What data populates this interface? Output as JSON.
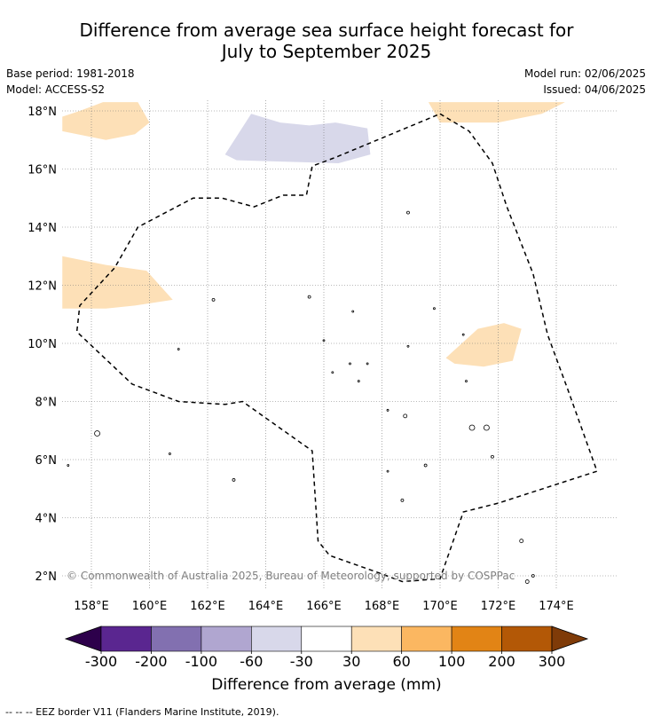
{
  "title": {
    "line1": "Difference from average sea surface height forecast for",
    "line2": "July to September 2025"
  },
  "meta": {
    "base_period": "Base period: 1981-2018",
    "model": "Model: ACCESS-S2",
    "model_run": "Model run: 02/06/2025",
    "issued": "Issued: 04/06/2025"
  },
  "map": {
    "lon_ticks": [
      "158°E",
      "160°E",
      "162°E",
      "164°E",
      "166°E",
      "168°E",
      "170°E",
      "172°E",
      "174°E"
    ],
    "lat_ticks": [
      "2°N",
      "4°N",
      "6°N",
      "8°N",
      "10°N",
      "12°N",
      "14°N",
      "16°N",
      "18°N"
    ],
    "lon_values": [
      158,
      160,
      162,
      164,
      166,
      168,
      170,
      172,
      174
    ],
    "lat_values": [
      2,
      4,
      6,
      8,
      10,
      12,
      14,
      16,
      18
    ],
    "copyright": "© Commonwealth of Australia 2025, Bureau of Meteorology, supported by COSPPac",
    "eez_border": [
      [
        170.0,
        17.9
      ],
      [
        171.0,
        17.3
      ],
      [
        171.8,
        16.2
      ],
      [
        172.3,
        14.7
      ],
      [
        173.2,
        12.4
      ],
      [
        173.7,
        10.3
      ],
      [
        174.4,
        8.4
      ],
      [
        175.4,
        5.6
      ],
      [
        172.0,
        4.5
      ],
      [
        170.8,
        4.2
      ],
      [
        170.0,
        1.9
      ],
      [
        168.7,
        1.8
      ],
      [
        167.9,
        2.1
      ],
      [
        166.2,
        2.7
      ],
      [
        165.8,
        3.2
      ],
      [
        165.6,
        6.3
      ],
      [
        163.2,
        8.0
      ],
      [
        162.6,
        7.9
      ],
      [
        161.0,
        8.0
      ],
      [
        159.4,
        8.6
      ],
      [
        157.5,
        10.4
      ],
      [
        157.6,
        11.3
      ],
      [
        158.8,
        12.6
      ],
      [
        159.6,
        14.0
      ],
      [
        161.5,
        15.0
      ],
      [
        162.5,
        15.0
      ],
      [
        163.6,
        14.7
      ],
      [
        164.6,
        15.1
      ],
      [
        165.4,
        15.1
      ],
      [
        165.6,
        16.1
      ],
      [
        166.4,
        16.4
      ],
      [
        170.0,
        17.9
      ]
    ],
    "anomaly_patches": [
      {
        "level": "30 to 60",
        "color": "#fde0b7",
        "coords": [
          [
            157.0,
            17.8
          ],
          [
            157.6,
            18.0
          ],
          [
            158.4,
            18.3
          ],
          [
            159.6,
            18.3
          ],
          [
            160.0,
            17.6
          ],
          [
            159.5,
            17.2
          ],
          [
            158.5,
            17.0
          ],
          [
            157.0,
            17.3
          ]
        ]
      },
      {
        "level": "30 to 60",
        "color": "#fde0b7",
        "coords": [
          [
            169.6,
            18.3
          ],
          [
            174.3,
            18.3
          ],
          [
            173.5,
            17.9
          ],
          [
            172.0,
            17.6
          ],
          [
            170.0,
            17.6
          ]
        ]
      },
      {
        "level": "30 to 60",
        "color": "#fde0b7",
        "coords": [
          [
            157.0,
            13.0
          ],
          [
            158.5,
            12.7
          ],
          [
            159.9,
            12.5
          ],
          [
            160.8,
            11.5
          ],
          [
            159.5,
            11.3
          ],
          [
            158.5,
            11.2
          ],
          [
            157.0,
            11.2
          ]
        ]
      },
      {
        "level": "30 to 60",
        "color": "#fde0b7",
        "coords": [
          [
            170.2,
            9.5
          ],
          [
            171.3,
            10.5
          ],
          [
            172.2,
            10.7
          ],
          [
            172.8,
            10.5
          ],
          [
            172.5,
            9.4
          ],
          [
            171.5,
            9.2
          ],
          [
            170.5,
            9.3
          ]
        ]
      },
      {
        "level": "-60 to -30",
        "color": "#d8d8ea",
        "coords": [
          [
            162.6,
            16.5
          ],
          [
            163.5,
            17.9
          ],
          [
            164.5,
            17.6
          ],
          [
            165.5,
            17.5
          ],
          [
            166.4,
            17.6
          ],
          [
            167.5,
            17.4
          ],
          [
            167.6,
            16.5
          ],
          [
            166.5,
            16.2
          ],
          [
            163.0,
            16.3
          ]
        ]
      }
    ]
  },
  "colorbar": {
    "label": "Difference from average (mm)",
    "ticks": [
      "-300",
      "-200",
      "-100",
      "-60",
      "-30",
      "30",
      "60",
      "100",
      "200",
      "300"
    ],
    "colors": [
      "#5a2690",
      "#8270b0",
      "#b0a6d0",
      "#d8d8ea",
      "#ffffff",
      "#fde0b7",
      "#fbb761",
      "#e28415",
      "#b35806"
    ],
    "extend_min_color": "#2d004b",
    "extend_max_color": "#7f3b08"
  },
  "legend": {
    "eez": "--  --  -- EEZ border V11 (Flanders Marine Institute, 2019)."
  }
}
